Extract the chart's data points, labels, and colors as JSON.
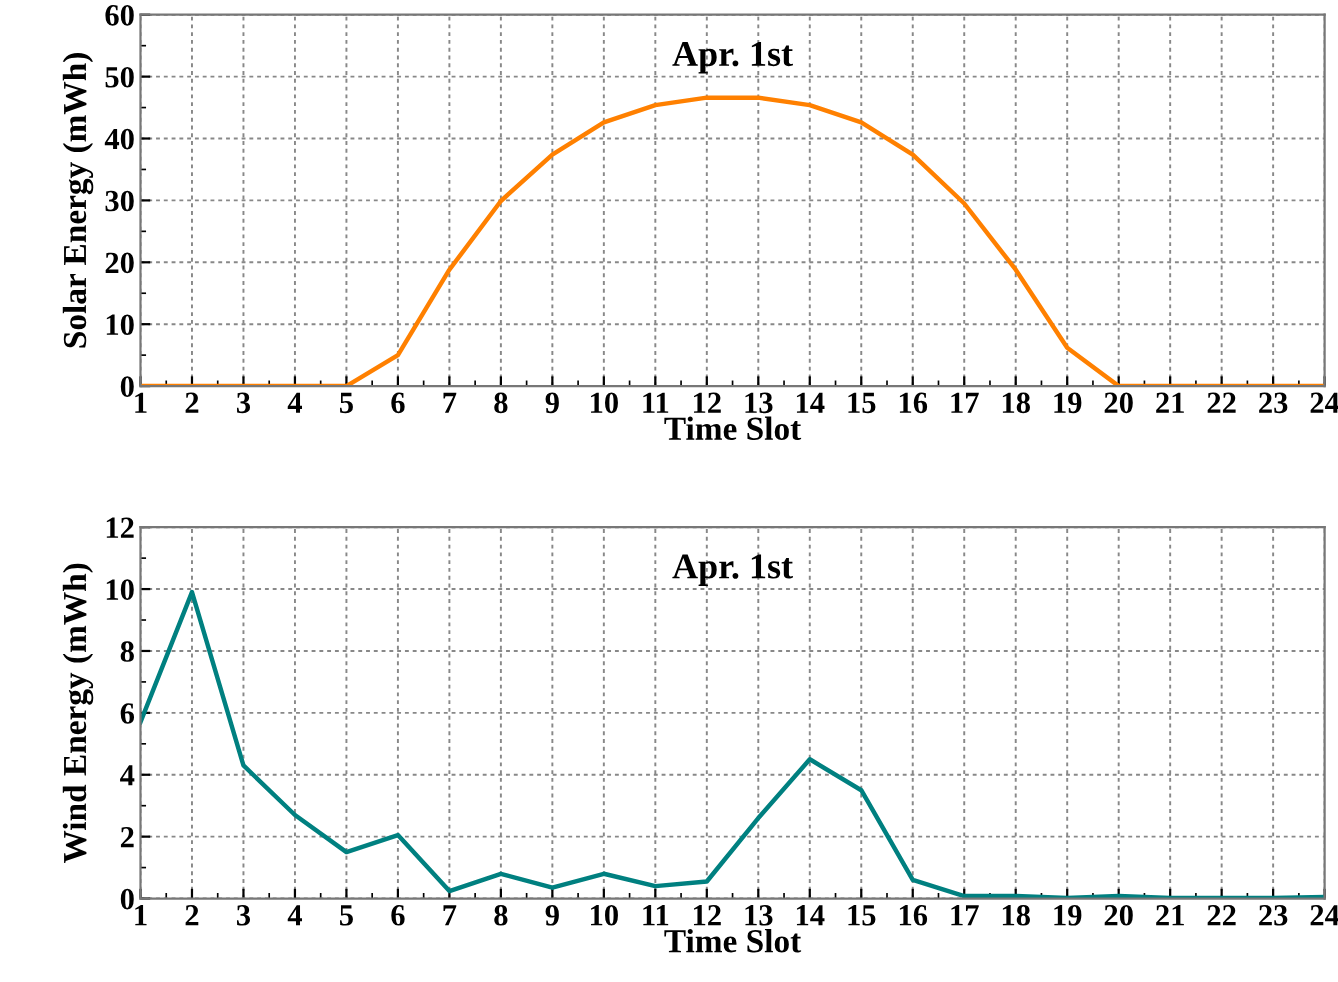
{
  "chart_data": [
    {
      "type": "line",
      "title": "Apr. 1st",
      "xlabel": "Time Slot",
      "ylabel": "Solar Energy (mWh)",
      "x": [
        1,
        2,
        3,
        4,
        5,
        6,
        7,
        8,
        9,
        10,
        11,
        12,
        13,
        14,
        15,
        16,
        17,
        18,
        19,
        20,
        21,
        22,
        23,
        24
      ],
      "series": [
        {
          "color": "#ff8000",
          "values": [
            0,
            0,
            0,
            0,
            0,
            5,
            18.8,
            29.9,
            37.4,
            42.6,
            45.4,
            46.6,
            46.6,
            45.4,
            42.6,
            37.4,
            29.5,
            18.8,
            6.2,
            0,
            0,
            0,
            0,
            0
          ]
        }
      ],
      "xlim": [
        1,
        24
      ],
      "xticks": [
        1,
        2,
        3,
        4,
        5,
        6,
        7,
        8,
        9,
        10,
        11,
        12,
        13,
        14,
        15,
        16,
        17,
        18,
        19,
        20,
        21,
        22,
        23,
        24
      ],
      "ylim": [
        0,
        60
      ],
      "yticks": [
        0,
        10,
        20,
        30,
        40,
        50,
        60
      ],
      "grid": true,
      "marker": "none",
      "line_style": "solid"
    },
    {
      "type": "line",
      "title": "Apr. 1st",
      "xlabel": "Time Slot",
      "ylabel": "Wind Energy (mWh)",
      "x": [
        1,
        2,
        3,
        4,
        5,
        6,
        7,
        8,
        9,
        10,
        11,
        12,
        13,
        14,
        15,
        16,
        17,
        18,
        19,
        20,
        21,
        22,
        23,
        24
      ],
      "series": [
        {
          "color": "#008080",
          "values": [
            5.7,
            9.9,
            4.3,
            2.7,
            1.5,
            2.05,
            0.24,
            0.8,
            0.35,
            0.8,
            0.4,
            0.55,
            2.6,
            4.5,
            3.5,
            0.6,
            0.08,
            0.08,
            0.02,
            0.08,
            0.02,
            0.02,
            0.02,
            0.05
          ]
        }
      ],
      "xlim": [
        1,
        24
      ],
      "xticks": [
        1,
        2,
        3,
        4,
        5,
        6,
        7,
        8,
        9,
        10,
        11,
        12,
        13,
        14,
        15,
        16,
        17,
        18,
        19,
        20,
        21,
        22,
        23,
        24
      ],
      "ylim": [
        0,
        12
      ],
      "yticks": [
        0,
        2,
        4,
        6,
        8,
        10,
        12
      ],
      "grid": true,
      "marker": "none",
      "line_style": "solid"
    }
  ]
}
